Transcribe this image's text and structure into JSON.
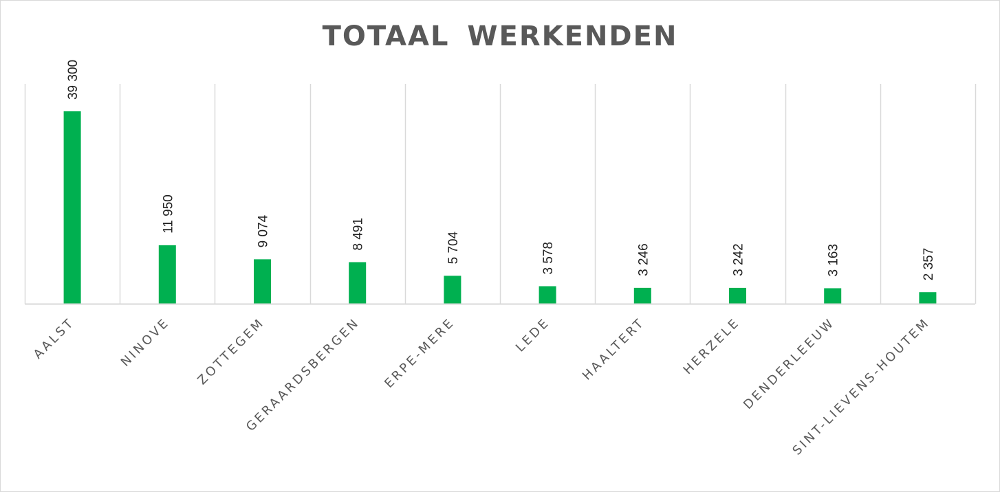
{
  "chart_data": {
    "type": "bar",
    "title": "TOTAAL  WERKENDEN",
    "xlabel": "",
    "ylabel": "",
    "categories": [
      "AALST",
      "NINOVE",
      "ZOTTEGEM",
      "GERAARDSBERGEN",
      "ERPE-MERE",
      "LEDE",
      "HAALTERT",
      "HERZELE",
      "DENDERLEEUW",
      "SINT-LIEVENS-HOUTEM"
    ],
    "values": [
      39300,
      11950,
      9074,
      8491,
      5704,
      3578,
      3246,
      3242,
      3163,
      2357
    ],
    "data_labels": [
      "39 300",
      "11 950",
      "9 074",
      "8 491",
      "5 704",
      "3 578",
      "3 246",
      "3 242",
      "3 163",
      "2 357"
    ],
    "ylim": [
      0,
      45000
    ],
    "grid": "vertical category separators",
    "legend": "none",
    "bar_color": "#00b050"
  }
}
